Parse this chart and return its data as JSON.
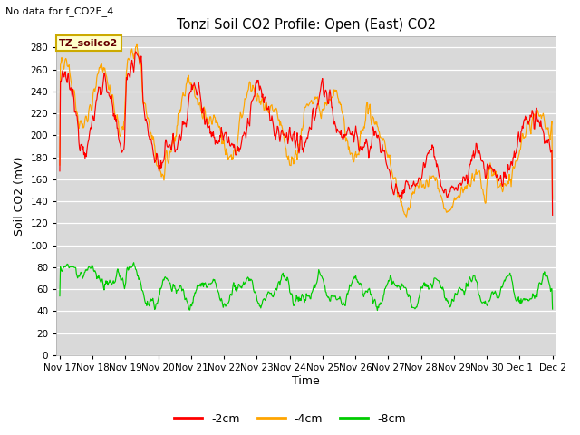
{
  "title": "Tonzi Soil CO2 Profile: Open (East) CO2",
  "subtitle": "No data for f_CO2E_4",
  "ylabel": "Soil CO2 (mV)",
  "xlabel": "Time",
  "annotation": "TZ_soilco2",
  "legend_labels": [
    "-2cm",
    "-4cm",
    "-8cm"
  ],
  "legend_colors": [
    "#ff0000",
    "#ffa500",
    "#00cc00"
  ],
  "bg_color": "#d9d9d9",
  "ylim": [
    0,
    290
  ],
  "yticks": [
    0,
    20,
    40,
    60,
    80,
    100,
    120,
    140,
    160,
    180,
    200,
    220,
    240,
    260,
    280
  ],
  "x_tick_labels": [
    "Nov 17",
    "Nov 18",
    "Nov 19",
    "Nov 20",
    "Nov 21",
    "Nov 22",
    "Nov 23",
    "Nov 24",
    "Nov 25",
    "Nov 26",
    "Nov 27",
    "Nov 28",
    "Nov 29",
    "Nov 30",
    "Dec 1",
    "Dec 2"
  ],
  "n_points": 800,
  "figsize": [
    6.4,
    4.8
  ],
  "dpi": 100
}
